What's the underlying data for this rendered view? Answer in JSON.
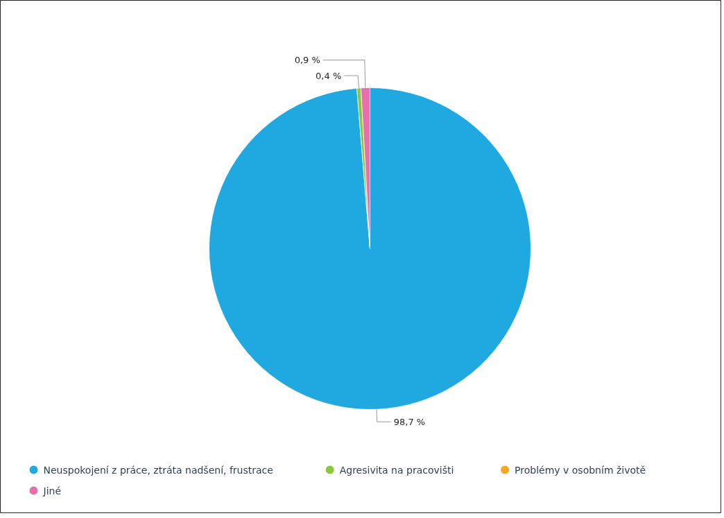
{
  "chart_data": {
    "type": "pie",
    "categories": [
      "Neuspokojení z práce, ztráta nadšení, frustrace",
      "Agresivita na pracovišti",
      "Problémy v osobním životě",
      "Jiné"
    ],
    "values": [
      98.7,
      0.4,
      0,
      0.9
    ],
    "colors": [
      "#20a8e0",
      "#8cc63f",
      "#f7a823",
      "#e86fac"
    ],
    "value_labels": [
      "98,7 %",
      "0,4 %",
      null,
      "0,9 %"
    ],
    "legend": "bottom"
  }
}
